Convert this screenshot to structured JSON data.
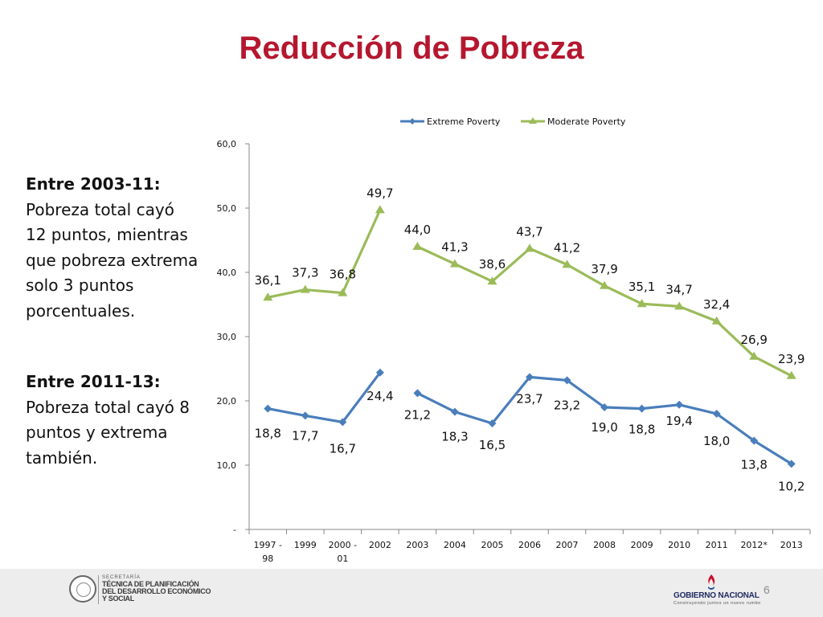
{
  "slide": {
    "title": "Reducción de Pobreza",
    "page_number": "6"
  },
  "sidebar": {
    "block1_heading": "Entre 2003-11:",
    "block1_text": "Pobreza total cayó\n12 puntos, mientras\nque pobreza extrema\nsolo 3 puntos\nporcentuales.",
    "block2_heading": "Entre 2011-13:",
    "block2_text": "Pobreza total cayó 8\npuntos y extrema\ntambién."
  },
  "footer": {
    "secretaria_label": "SECRETARÍA",
    "secretaria_name": "TÉCNICA DE PLANIFICACIÓN\nDEL DESARROLLO ECONÓMICO\nY SOCIAL",
    "gobierno_name": "GOBIERNO NACIONAL",
    "gobierno_tagline": "Construyendo juntos un nuevo rumbo"
  },
  "chart_data": {
    "type": "line",
    "categories": [
      "1997 - 98",
      "1999",
      "2000 - 01",
      "2002",
      "2003",
      "2004",
      "2005",
      "2006",
      "2007",
      "2008",
      "2009",
      "2010",
      "2011",
      "2012*",
      "2013"
    ],
    "ylim": [
      0,
      60
    ],
    "yticks": [
      "-",
      "10,0",
      "20,0",
      "30,0",
      "40,0",
      "50,0",
      "60,0"
    ],
    "grid": false,
    "legend_position": "top",
    "series": [
      {
        "name": "Extreme Poverty",
        "color": "#4a7ebb",
        "marker": "diamond",
        "values": [
          18.8,
          17.7,
          16.7,
          24.4,
          21.2,
          18.3,
          16.5,
          23.7,
          23.2,
          19.0,
          18.8,
          19.4,
          18.0,
          13.8,
          10.2
        ],
        "labels": [
          "18,8",
          "17,7",
          "16,7",
          "24,4",
          "21,2",
          "18,3",
          "16,5",
          "23,7",
          "23,2",
          "19,0",
          "18,8",
          "19,4",
          "18,0",
          "13,8",
          "10,2"
        ],
        "segments": [
          [
            0,
            3
          ],
          [
            4,
            14
          ]
        ]
      },
      {
        "name": "Moderate Poverty",
        "color": "#9bbb59",
        "marker": "triangle",
        "values": [
          36.1,
          37.3,
          36.8,
          49.7,
          44.0,
          41.3,
          38.6,
          43.7,
          41.2,
          37.9,
          35.1,
          34.7,
          32.4,
          26.9,
          23.9
        ],
        "labels": [
          "36,1",
          "37,3",
          "36,8",
          "49,7",
          "44,0",
          "41,3",
          "38,6",
          "43,7",
          "41,2",
          "37,9",
          "35,1",
          "34,7",
          "32,4",
          "26,9",
          "23,9"
        ],
        "segments": [
          [
            0,
            3
          ],
          [
            4,
            14
          ]
        ]
      }
    ]
  }
}
